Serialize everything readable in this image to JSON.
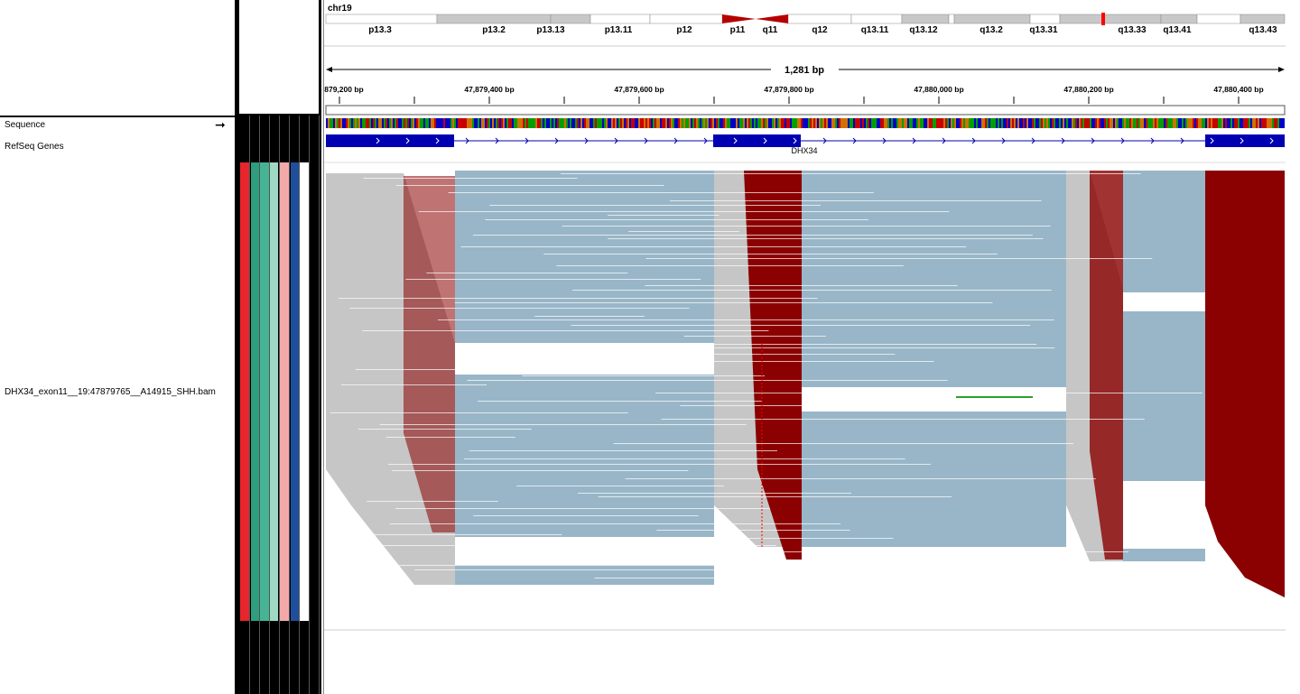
{
  "chromosome": "chr19",
  "ideogram_bands": [
    "p13.3",
    "p13.2",
    "p13.13",
    "p13.11",
    "p12",
    "p11",
    "q11",
    "q12",
    "q13.11",
    "q13.12",
    "q13.2",
    "q13.31",
    "q13.33",
    "q13.41",
    "q13.43"
  ],
  "ruler": {
    "span_label": "1,281 bp",
    "ticks": [
      "879,200 bp",
      "47,879,400 bp",
      "47,879,600 bp",
      "47,879,800 bp",
      "47,880,000 bp",
      "47,880,200 bp",
      "47,880,400 bp"
    ]
  },
  "tracks": {
    "sequence": "Sequence",
    "refseq": "RefSeq Genes",
    "bam": "DHX34_exon11__19:47879765__A14915_SHH.bam"
  },
  "gene": {
    "name": "DHX34",
    "exon_color": "#0000b2"
  },
  "attribute_colors": [
    "#e8242c",
    "#2e9e7e",
    "#45b394",
    "#9fd9c4",
    "#f4a9a9",
    "#1f4e9c",
    "#ffffff"
  ],
  "colors": {
    "coverage_blue": "#99b6c8",
    "read_gray": "#c6c6c6",
    "mismatch_red": "#8b0000",
    "centromere": "#b50000"
  }
}
